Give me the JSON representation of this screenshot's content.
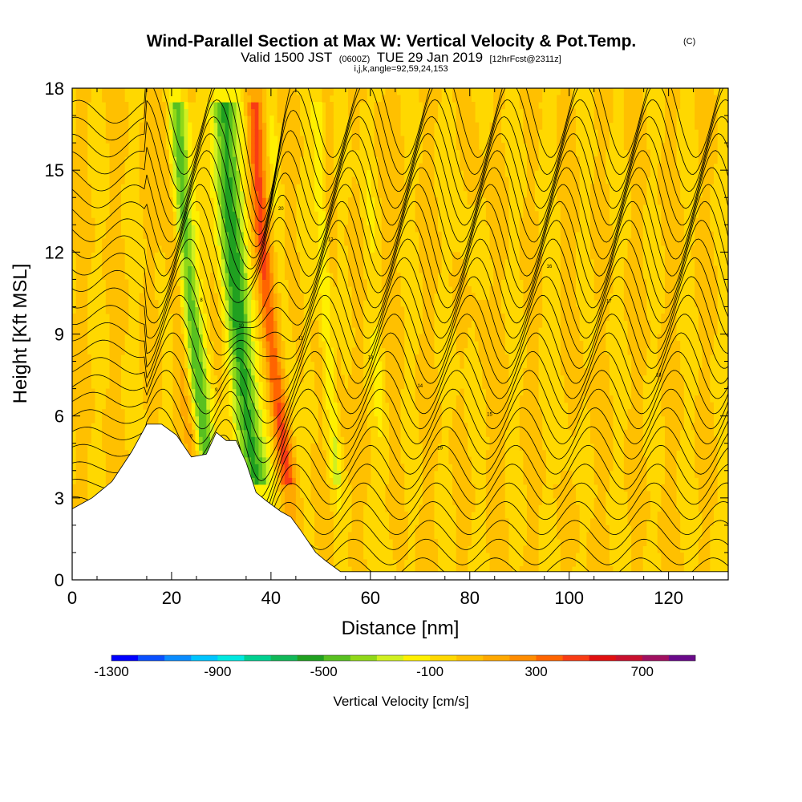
{
  "chart_data": {
    "type": "heatmap",
    "title": "Wind-Parallel Section at Max W: Vertical Velocity & Pot.Temp.",
    "title_mark": "(C)",
    "subtitle_parts": [
      "Valid 1500 JST",
      "(0600Z)",
      "TUE 29 Jan 2019",
      "[12hrFcst@2311z]"
    ],
    "subtitle2": "i,j,k,angle=92,59,24,153",
    "xlabel": "Distance [nm]",
    "ylabel": "Height [Kft MSL]",
    "xlim": [
      0,
      132
    ],
    "ylim": [
      0,
      18
    ],
    "x_ticks": [
      "0",
      "20",
      "40",
      "60",
      "80",
      "100",
      "120"
    ],
    "y_ticks": [
      "0",
      "3",
      "6",
      "9",
      "12",
      "15",
      "18"
    ],
    "colorbar": {
      "label": "Vertical Velocity [cm/s]",
      "tick_labels": [
        "-1300",
        "-900",
        "-500",
        "-100",
        "300",
        "700"
      ],
      "colors": [
        "#0000ff",
        "#0a50ff",
        "#0a8cff",
        "#00c4ff",
        "#00e8e0",
        "#00d090",
        "#10b858",
        "#20a020",
        "#58c020",
        "#90d818",
        "#d0f020",
        "#fff000",
        "#ffd800",
        "#ffc000",
        "#ffa800",
        "#ff8c00",
        "#ff6400",
        "#f83c14",
        "#e01010",
        "#c8102e",
        "#a01060",
        "#6a0a8a"
      ]
    },
    "terrain": [
      [
        0,
        2.6
      ],
      [
        4,
        3.0
      ],
      [
        8,
        3.6
      ],
      [
        12,
        4.7
      ],
      [
        15,
        5.7
      ],
      [
        18,
        5.7
      ],
      [
        21,
        5.3
      ],
      [
        24,
        4.5
      ],
      [
        27,
        4.6
      ],
      [
        29,
        5.4
      ],
      [
        31,
        5.1
      ],
      [
        33,
        5.1
      ],
      [
        35,
        4.3
      ],
      [
        37,
        3.2
      ],
      [
        39,
        2.9
      ],
      [
        42,
        2.5
      ],
      [
        44,
        2.3
      ],
      [
        46,
        1.8
      ],
      [
        49,
        1.0
      ],
      [
        51,
        0.7
      ],
      [
        54,
        0.3
      ],
      [
        57,
        0.3
      ],
      [
        132,
        0.3
      ]
    ],
    "bands": [
      {
        "x": 25,
        "w": 2.5,
        "min": -750,
        "max": 200,
        "gauss": true
      },
      {
        "x": 34,
        "w": 3.6,
        "min": -820,
        "max": 0,
        "gauss": true
      },
      {
        "x": 41,
        "w": 1.9,
        "min": 100,
        "max": 620,
        "gauss": true
      },
      {
        "x": 46,
        "w": 1.8,
        "min": -150,
        "max": 80,
        "gauss": true
      },
      {
        "x": 53,
        "w": 1.6,
        "min": -320,
        "max": 80,
        "gauss": true
      },
      {
        "x": 63,
        "w": 2.0,
        "min": -150,
        "max": 80,
        "gauss": true
      },
      {
        "x": 82,
        "w": 2.5,
        "min": -60,
        "max": 50,
        "gauss": true
      },
      {
        "x": 100,
        "w": 3.0,
        "min": -60,
        "max": 50,
        "gauss": true
      }
    ],
    "theta": {
      "z_base": 0.4,
      "z_step": 0.62,
      "count": 28,
      "label_values": [
        "8",
        "9",
        "10",
        "11",
        "12",
        "13",
        "14",
        "15",
        "16",
        "17",
        "18",
        "19",
        "20"
      ]
    }
  }
}
